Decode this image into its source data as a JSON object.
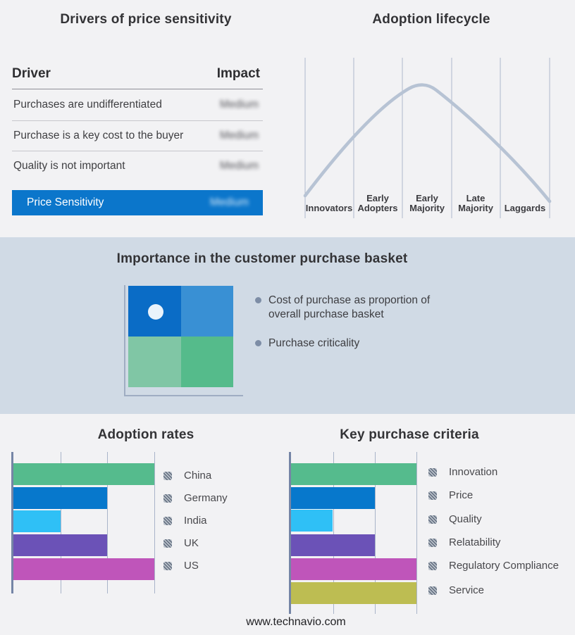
{
  "footer": {
    "url": "www.technavio.com"
  },
  "sections": {
    "basket": {
      "title": "Importance in the customer purchase basket",
      "bullets": [
        "Cost of purchase as proportion of overall purchase basket",
        "Purchase criticality"
      ]
    }
  },
  "chart_data": [
    {
      "type": "table",
      "title": "Drivers of price sensitivity",
      "columns": [
        "Driver",
        "Impact"
      ],
      "rows": [
        [
          "Purchases are undifferentiated",
          "Medium"
        ],
        [
          "Purchase is a key cost to the buyer",
          "Medium"
        ],
        [
          "Quality is not important",
          "Medium"
        ],
        [
          "Price Sensitivity",
          "Medium"
        ]
      ],
      "notes": "Impact values are blurred in the source image; last row is highlighted on a blue banner"
    },
    {
      "type": "line",
      "title": "Adoption lifecycle",
      "categories": [
        "Innovators",
        "Early Adopters",
        "Early Majority",
        "Late Majority",
        "Laggards"
      ],
      "description": "Bell-shaped adoption curve rising from Innovators, peaking within Early Majority, falling to Laggards",
      "points_norm": [
        [
          0.0,
          0.04
        ],
        [
          0.2,
          0.44
        ],
        [
          0.4,
          0.78
        ],
        [
          0.48,
          0.82
        ],
        [
          0.6,
          0.72
        ],
        [
          0.8,
          0.35
        ],
        [
          1.0,
          0.0
        ]
      ],
      "line_color": "#b7c3d4",
      "grid": true,
      "legend": false
    },
    {
      "type": "bar",
      "orientation": "horizontal",
      "title": "Adoption rates",
      "categories": [
        "China",
        "Germany",
        "India",
        "UK",
        "US"
      ],
      "values": [
        3,
        2,
        1,
        2,
        3
      ],
      "xlim": [
        0,
        3
      ],
      "xlabel": "",
      "ylabel": "",
      "axis_tick_labels": false,
      "notes": "Unlabeled axis; values estimated in gridline units",
      "colors": [
        "#55bb8d",
        "#0778cc",
        "#2fc0f6",
        "#6b52b7",
        "#bf55ba"
      ],
      "grid": true,
      "legend_position": "right"
    },
    {
      "type": "bar",
      "orientation": "horizontal",
      "title": "Key purchase criteria",
      "categories": [
        "Innovation",
        "Price",
        "Quality",
        "Relatability",
        "Regulatory Compliance",
        "Service"
      ],
      "values": [
        3,
        2,
        1,
        2,
        3,
        3
      ],
      "xlim": [
        0,
        3
      ],
      "xlabel": "",
      "ylabel": "",
      "axis_tick_labels": false,
      "notes": "Unlabeled axis; values estimated in gridline units",
      "colors": [
        "#55bb8d",
        "#0778cc",
        "#2fc0f6",
        "#6b52b7",
        "#bf55ba",
        "#bdbd52"
      ],
      "grid": true,
      "legend_position": "right"
    }
  ],
  "colors": {
    "page_bg": "#f2f2f4",
    "band_bg": "#d0dae5",
    "highlight_blue": "#0b76cb",
    "curve": "#b7c3d4",
    "quadrant_top_left": "#0a6cc6",
    "quadrant_top_right": "#3990d4",
    "quadrant_bottom_left": "#80c6a5",
    "quadrant_bottom_right": "#55bb8b"
  }
}
